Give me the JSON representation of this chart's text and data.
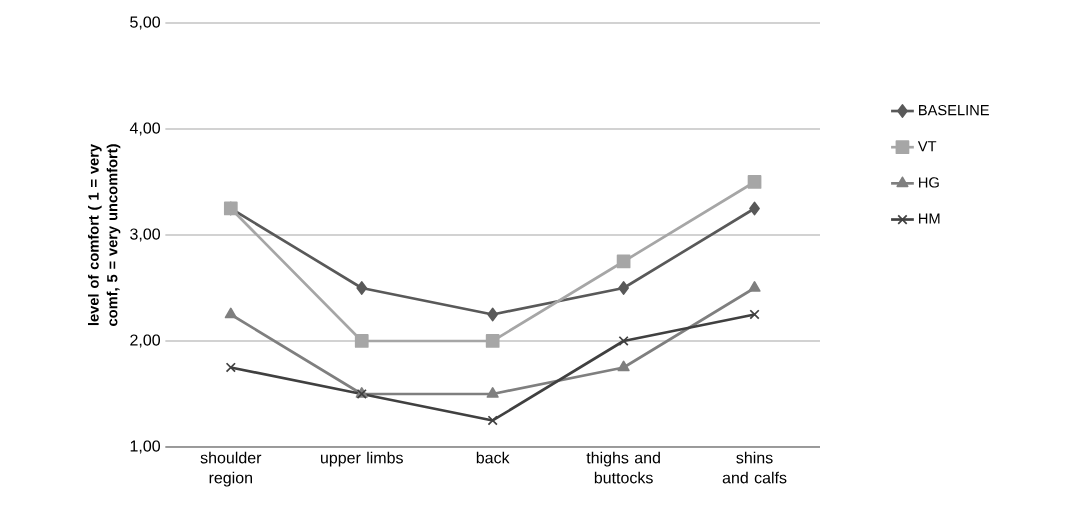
{
  "chart_data": {
    "type": "line",
    "ylabel": "level of comfort ( 1 = very comf, 5 = very uncomfort)",
    "categories": [
      "shoulder region",
      "upper limbs",
      "back",
      "thighs and buttocks",
      "shins and calfs"
    ],
    "series": [
      {
        "name": "BASELINE",
        "color": "#595959",
        "marker": "diamond",
        "values": [
          3.25,
          2.5,
          2.25,
          2.5,
          3.25
        ]
      },
      {
        "name": "VT",
        "color": "#a6a6a6",
        "marker": "square",
        "values": [
          3.25,
          2.0,
          2.0,
          2.75,
          3.5
        ]
      },
      {
        "name": "HG",
        "color": "#7f7f7f",
        "marker": "triangle",
        "values": [
          2.25,
          1.5,
          1.5,
          1.75,
          2.5
        ]
      },
      {
        "name": "HM",
        "color": "#404040",
        "marker": "cross",
        "values": [
          1.75,
          1.5,
          1.25,
          2.0,
          2.25
        ]
      }
    ],
    "ylim": [
      1,
      5
    ],
    "yticks": [
      {
        "value": 1,
        "label": "1,00"
      },
      {
        "value": 2,
        "label": "2,00"
      },
      {
        "value": 3,
        "label": "3,00"
      },
      {
        "value": 4,
        "label": "4,00"
      },
      {
        "value": 5,
        "label": "5,00"
      }
    ],
    "grid": "y",
    "legend": "right",
    "line_style": "solid"
  }
}
